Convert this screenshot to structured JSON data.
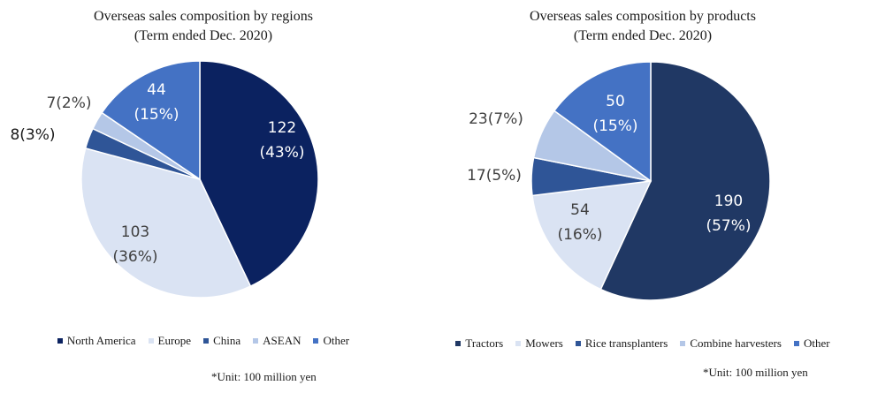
{
  "chart_data": [
    {
      "type": "pie",
      "title": "Overseas sales composition by regions",
      "subtitle": "(Term ended Dec. 2020)",
      "unit_note": "*Unit: 100 million yen",
      "legend_position": "bottom",
      "slices": [
        {
          "name": "North America",
          "value": 122,
          "label_value": "122",
          "label_pct": "(43%)",
          "color": "#0b2260",
          "label_color": "#ffffff",
          "label_inside": true
        },
        {
          "name": "Europe",
          "value": 103,
          "label_value": "103",
          "label_pct": "(36%)",
          "color": "#dae3f3",
          "label_color": "#404040",
          "label_inside": true
        },
        {
          "name": "China",
          "value": 8,
          "label_value": "8(3%)",
          "label_pct": "",
          "color": "#2f5597",
          "label_color": "#1a1a1a",
          "label_inside": false
        },
        {
          "name": "ASEAN",
          "value": 7,
          "label_value": "7(2%)",
          "label_pct": "",
          "color": "#b4c7e7",
          "label_color": "#404040",
          "label_inside": false
        },
        {
          "name": "Other",
          "value": 44,
          "label_value": "44",
          "label_pct": "(15%)",
          "color": "#4472c4",
          "label_color": "#ffffff",
          "label_inside": true
        }
      ]
    },
    {
      "type": "pie",
      "title": "Overseas sales composition by products",
      "subtitle": "(Term ended Dec. 2020)",
      "unit_note": "*Unit: 100 million yen",
      "legend_position": "bottom",
      "slices": [
        {
          "name": "Tractors",
          "value": 190,
          "label_value": "190",
          "label_pct": "(57%)",
          "color": "#203864",
          "label_color": "#ffffff",
          "label_inside": true
        },
        {
          "name": "Mowers",
          "value": 54,
          "label_value": "54",
          "label_pct": "(16%)",
          "color": "#dae3f3",
          "label_color": "#404040",
          "label_inside": true
        },
        {
          "name": "Rice transplanters",
          "value": 17,
          "label_value": "17(5%)",
          "label_pct": "",
          "color": "#2f5597",
          "label_color": "#404040",
          "label_inside": false
        },
        {
          "name": "Combine harvesters",
          "value": 23,
          "label_value": "23(7%)",
          "label_pct": "",
          "color": "#b4c7e7",
          "label_color": "#404040",
          "label_inside": false
        },
        {
          "name": "Other",
          "value": 50,
          "label_value": "50",
          "label_pct": "(15%)",
          "color": "#4472c4",
          "label_color": "#ffffff",
          "label_inside": true
        }
      ]
    }
  ]
}
